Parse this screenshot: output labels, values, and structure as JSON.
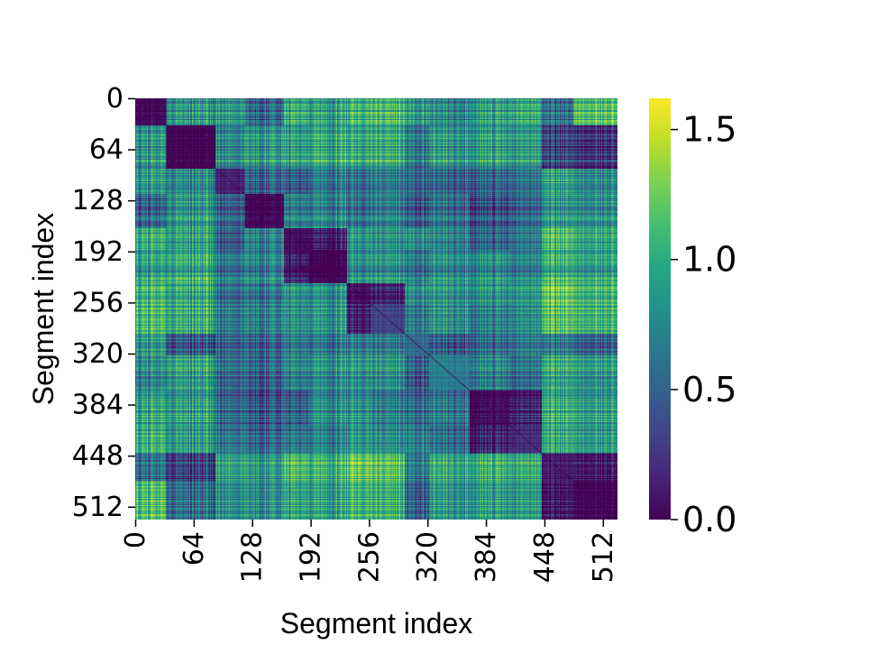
{
  "chart_data": {
    "type": "heatmap",
    "title": "",
    "xlabel": "Segment index",
    "ylabel": "Segment index",
    "n": 528,
    "x_ticks": [
      "0",
      "64",
      "128",
      "192",
      "256",
      "320",
      "384",
      "448",
      "512"
    ],
    "y_ticks": [
      "0",
      "64",
      "128",
      "192",
      "256",
      "320",
      "384",
      "448",
      "512"
    ],
    "colorbar": {
      "colormap": "viridis",
      "range": [
        0.0,
        1.62
      ],
      "ticks": [
        "0.0",
        "0.5",
        "1.0",
        "1.5"
      ]
    },
    "block_boundaries": [
      0,
      34,
      88,
      120,
      163,
      190,
      232,
      258,
      295,
      322,
      366,
      410,
      445,
      480,
      528
    ],
    "block_levels": [
      [
        0.12,
        1.15,
        1.2,
        0.85,
        1.3,
        1.25,
        1.35,
        1.4,
        1.2,
        1.05,
        1.2,
        1.25,
        0.85,
        1.5
      ],
      [
        1.15,
        0.08,
        1.1,
        1.15,
        1.2,
        1.3,
        1.25,
        1.3,
        1.0,
        1.15,
        1.2,
        1.15,
        0.6,
        0.6
      ],
      [
        1.2,
        1.1,
        0.3,
        0.85,
        0.8,
        1.0,
        0.9,
        1.0,
        0.9,
        0.85,
        0.85,
        0.9,
        1.2,
        1.15
      ],
      [
        0.85,
        1.15,
        0.85,
        0.12,
        1.0,
        1.05,
        0.9,
        1.0,
        0.8,
        0.9,
        0.7,
        0.8,
        1.1,
        1.15
      ],
      [
        1.3,
        1.2,
        0.8,
        1.0,
        0.15,
        0.4,
        1.1,
        1.1,
        1.1,
        1.0,
        0.8,
        0.9,
        1.35,
        1.3
      ],
      [
        1.25,
        1.3,
        1.0,
        1.05,
        0.4,
        0.1,
        1.1,
        1.15,
        1.0,
        1.1,
        1.1,
        1.0,
        1.3,
        1.3
      ],
      [
        1.35,
        1.25,
        0.9,
        0.9,
        1.1,
        1.1,
        0.15,
        0.4,
        1.1,
        1.1,
        1.1,
        1.1,
        1.45,
        1.4
      ],
      [
        1.4,
        1.3,
        1.0,
        1.0,
        1.1,
        1.15,
        0.4,
        0.45,
        1.0,
        1.1,
        1.0,
        1.05,
        1.4,
        1.4
      ],
      [
        1.2,
        0.8,
        0.9,
        0.85,
        1.0,
        1.0,
        1.0,
        1.0,
        0.7,
        0.8,
        0.9,
        0.95,
        0.95,
        0.9
      ],
      [
        1.05,
        1.2,
        0.9,
        0.8,
        1.0,
        1.1,
        1.1,
        1.1,
        0.8,
        0.8,
        1.0,
        0.85,
        1.2,
        1.2
      ],
      [
        1.25,
        1.2,
        0.9,
        0.75,
        0.8,
        1.1,
        1.1,
        1.0,
        0.9,
        0.95,
        0.15,
        0.4,
        1.25,
        1.25
      ],
      [
        1.3,
        1.15,
        0.95,
        0.8,
        0.9,
        1.0,
        1.1,
        1.05,
        1.0,
        0.85,
        0.4,
        0.3,
        1.2,
        1.2
      ],
      [
        0.85,
        0.55,
        1.2,
        1.1,
        1.35,
        1.3,
        1.45,
        1.4,
        0.95,
        1.2,
        1.25,
        1.2,
        0.2,
        0.35
      ],
      [
        1.5,
        0.95,
        1.2,
        1.15,
        1.3,
        1.3,
        1.4,
        1.4,
        0.9,
        1.2,
        1.25,
        1.2,
        0.35,
        0.15
      ]
    ]
  }
}
